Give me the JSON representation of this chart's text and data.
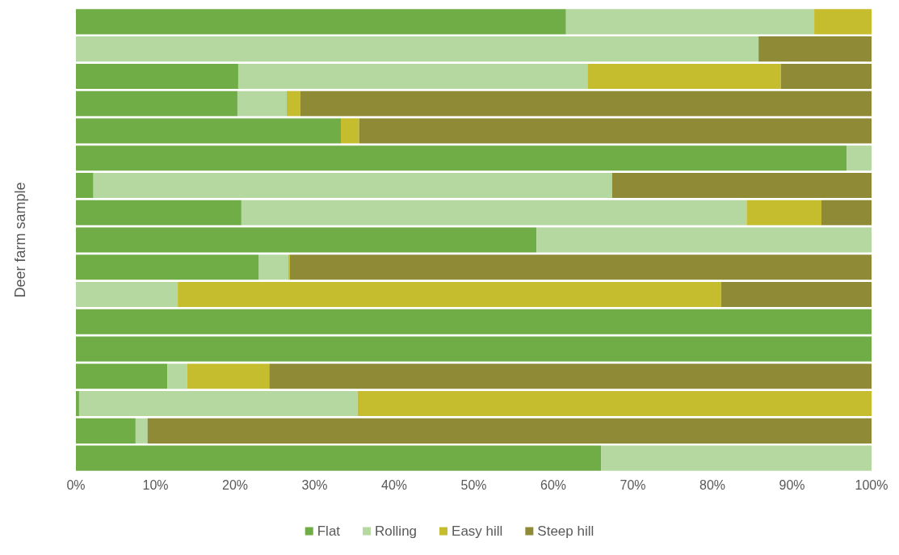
{
  "chart_data": {
    "type": "bar",
    "orientation": "horizontal",
    "stacked": true,
    "ylabel": "Deer farm sample",
    "categories": [
      null,
      null,
      null,
      null,
      null,
      null,
      null,
      null,
      null,
      null,
      null,
      null,
      null,
      null,
      null,
      null,
      null
    ],
    "series": [
      {
        "name": "Flat",
        "color": "#70ad47",
        "values": [
          61.6,
          0,
          20.4,
          20.3,
          33.3,
          96.9,
          2.2,
          20.8,
          57.9,
          23.0,
          0,
          100,
          100,
          11.5,
          0.4,
          7.5,
          66.0
        ]
      },
      {
        "name": "Rolling",
        "color": "#b4d8a0",
        "values": [
          31.2,
          85.8,
          43.9,
          6.2,
          0,
          3.1,
          65.2,
          63.5,
          42.1,
          3.7,
          12.8,
          0,
          0,
          2.5,
          35.0,
          1.5,
          34.0
        ]
      },
      {
        "name": "Easy hill",
        "color": "#c5bd2e",
        "values": [
          7.2,
          0,
          24.3,
          1.7,
          2.3,
          0,
          0,
          9.4,
          0,
          0.2,
          68.3,
          0,
          0,
          10.3,
          64.6,
          0,
          0
        ]
      },
      {
        "name": "Steep hill",
        "color": "#8f8a36",
        "values": [
          0,
          14.2,
          11.4,
          71.8,
          64.4,
          0,
          32.6,
          6.3,
          0,
          73.1,
          18.9,
          0,
          0,
          75.7,
          0,
          91.0,
          0
        ]
      }
    ],
    "xlim": [
      0,
      100
    ],
    "xticks": [
      {
        "value": 0,
        "label": "0%"
      },
      {
        "value": 10,
        "label": "10%"
      },
      {
        "value": 20,
        "label": "20%"
      },
      {
        "value": 30,
        "label": "30%"
      },
      {
        "value": 40,
        "label": "40%"
      },
      {
        "value": 50,
        "label": "50%"
      },
      {
        "value": 60,
        "label": "60%"
      },
      {
        "value": 70,
        "label": "70%"
      },
      {
        "value": 80,
        "label": "80%"
      },
      {
        "value": 90,
        "label": "90%"
      },
      {
        "value": 100,
        "label": "100%"
      }
    ],
    "grid": false,
    "legend": "bottom"
  }
}
